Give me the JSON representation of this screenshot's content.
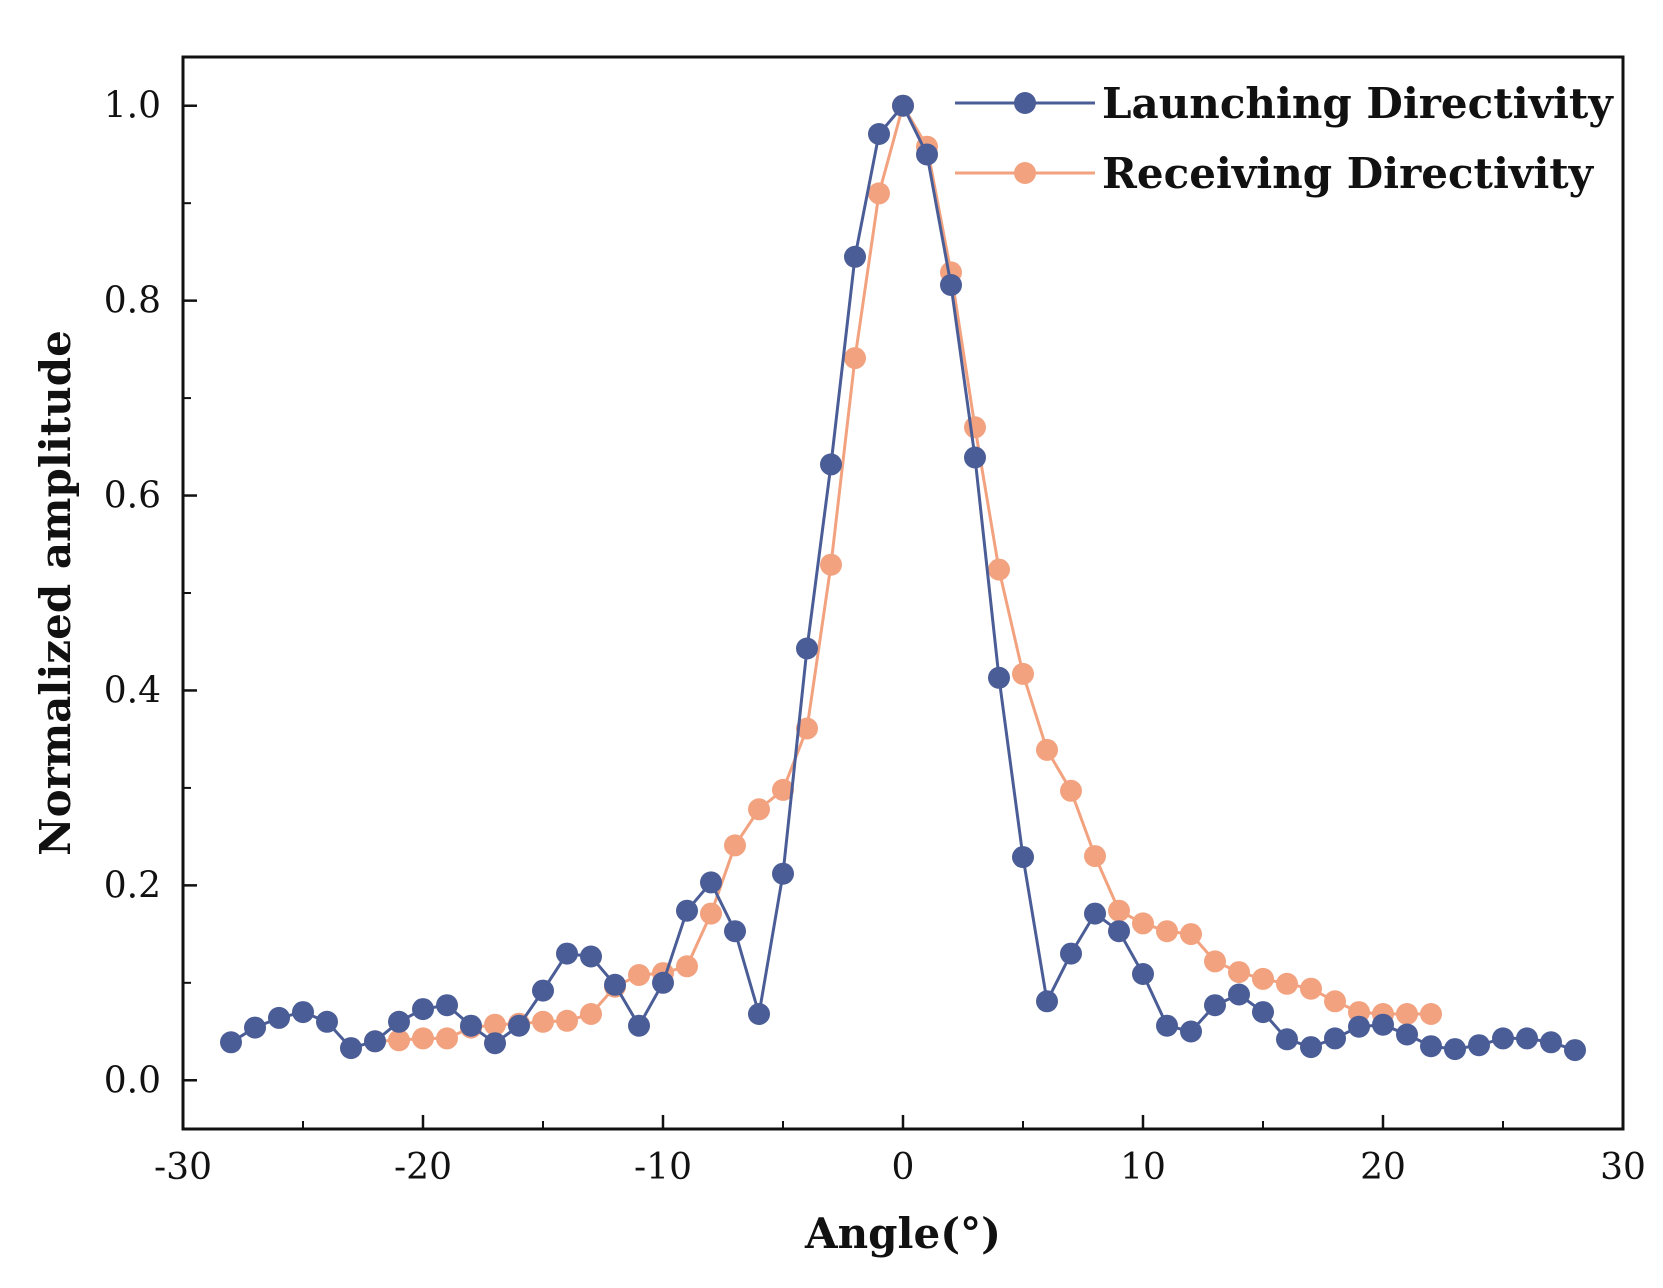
{
  "chart_data": {
    "type": "line",
    "title": "",
    "xlabel": "Angle(°)",
    "ylabel": "Normalized amplitude",
    "xlim": [
      -30,
      30
    ],
    "ylim": [
      -0.05,
      1.05
    ],
    "xticks": [
      -30,
      -20,
      -10,
      0,
      10,
      20,
      30
    ],
    "xtick_labels": [
      "-30",
      "-20",
      "-10",
      "0",
      "10",
      "20",
      "30"
    ],
    "yticks": [
      0.0,
      0.2,
      0.4,
      0.6,
      0.8,
      1.0
    ],
    "ytick_labels": [
      "0.0",
      "0.2",
      "0.4",
      "0.6",
      "0.8",
      "1.0"
    ],
    "legend_position": "top-right",
    "grid": false,
    "series": [
      {
        "name": "Launching Directivity",
        "color": "#4b5d97",
        "x": [
          -28,
          -27,
          -26,
          -25,
          -24,
          -23,
          -22,
          -21,
          -20,
          -19,
          -18,
          -17,
          -16,
          -15,
          -14,
          -13,
          -12,
          -11,
          -10,
          -9,
          -8,
          -7,
          -6,
          -5,
          -4,
          -3,
          -2,
          -1,
          0,
          1,
          2,
          3,
          4,
          5,
          6,
          7,
          8,
          9,
          10,
          11,
          12,
          13,
          14,
          15,
          16,
          17,
          18,
          19,
          20,
          21,
          22,
          23,
          24,
          25,
          26,
          27,
          28
        ],
        "values": [
          0.039,
          0.054,
          0.064,
          0.07,
          0.06,
          0.033,
          0.04,
          0.06,
          0.073,
          0.077,
          0.056,
          0.038,
          0.056,
          0.092,
          0.13,
          0.127,
          0.098,
          0.056,
          0.1,
          0.174,
          0.203,
          0.153,
          0.068,
          0.212,
          0.443,
          0.632,
          0.845,
          0.971,
          1.0,
          0.95,
          0.816,
          0.639,
          0.413,
          0.229,
          0.081,
          0.13,
          0.171,
          0.153,
          0.109,
          0.056,
          0.05,
          0.077,
          0.088,
          0.07,
          0.042,
          0.034,
          0.043,
          0.055,
          0.057,
          0.047,
          0.035,
          0.032,
          0.036,
          0.043,
          0.043,
          0.039,
          0.031
        ]
      },
      {
        "name": "Receiving Directivity",
        "color": "#f2a27f",
        "x": [
          -22,
          -21,
          -20,
          -19,
          -18,
          -17,
          -16,
          -15,
          -14,
          -13,
          -12,
          -11,
          -10,
          -9,
          -8,
          -7,
          -6,
          -5,
          -4,
          -3,
          -2,
          -1,
          0,
          1,
          2,
          3,
          4,
          5,
          6,
          7,
          8,
          9,
          10,
          11,
          12,
          13,
          14,
          15,
          16,
          17,
          18,
          19,
          20,
          21,
          22
        ],
        "values": [
          0.04,
          0.041,
          0.043,
          0.043,
          0.054,
          0.057,
          0.058,
          0.06,
          0.061,
          0.068,
          0.096,
          0.108,
          0.11,
          0.117,
          0.171,
          0.241,
          0.278,
          0.298,
          0.361,
          0.529,
          0.741,
          0.91,
          1.0,
          0.958,
          0.829,
          0.67,
          0.524,
          0.417,
          0.339,
          0.297,
          0.23,
          0.174,
          0.161,
          0.153,
          0.15,
          0.122,
          0.111,
          0.104,
          0.099,
          0.094,
          0.081,
          0.07,
          0.068,
          0.068,
          0.068
        ]
      }
    ]
  }
}
